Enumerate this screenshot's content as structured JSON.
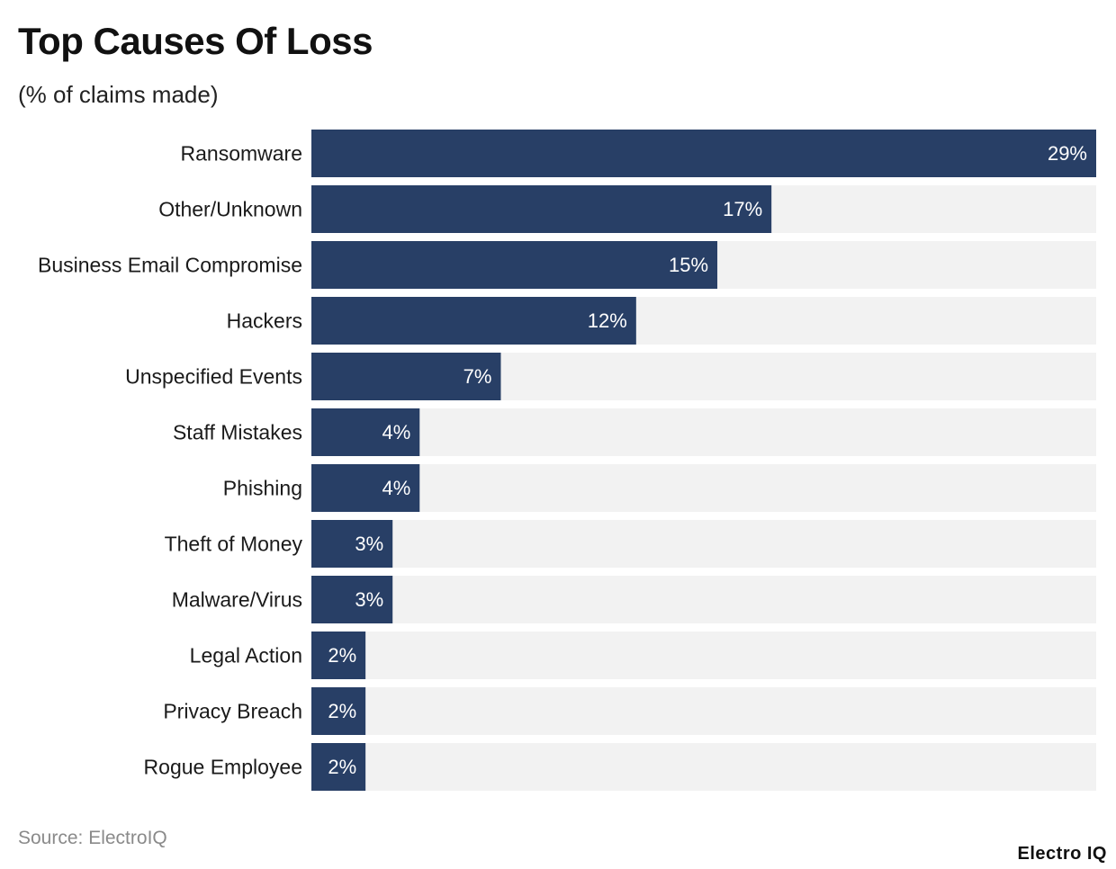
{
  "chart_data": {
    "type": "bar",
    "orientation": "horizontal",
    "title": "Top Causes Of Loss",
    "subtitle": "(% of claims made)",
    "categories": [
      "Ransomware",
      "Other/Unknown",
      "Business Email Compromise",
      "Hackers",
      "Unspecified Events",
      "Staff Mistakes",
      "Phishing",
      "Theft of Money",
      "Malware/Virus",
      "Legal Action",
      "Privacy Breach",
      "Rogue Employee"
    ],
    "values": [
      29,
      17,
      15,
      12,
      7,
      4,
      4,
      3,
      3,
      2,
      2,
      2
    ],
    "value_labels": [
      "29%",
      "17%",
      "15%",
      "12%",
      "7%",
      "4%",
      "4%",
      "3%",
      "3%",
      "2%",
      "2%",
      "2%"
    ],
    "xlim": [
      0,
      29
    ],
    "unit": "%",
    "xlabel": "",
    "ylabel": "",
    "grid": false,
    "legend": "none"
  },
  "colors": {
    "bar": "#283f66",
    "track": "#f2f2f2",
    "value_label": "#ffffff",
    "category_label": "#1a1a1a"
  },
  "source": "Source: ElectroIQ",
  "brand": "Electro IQ"
}
